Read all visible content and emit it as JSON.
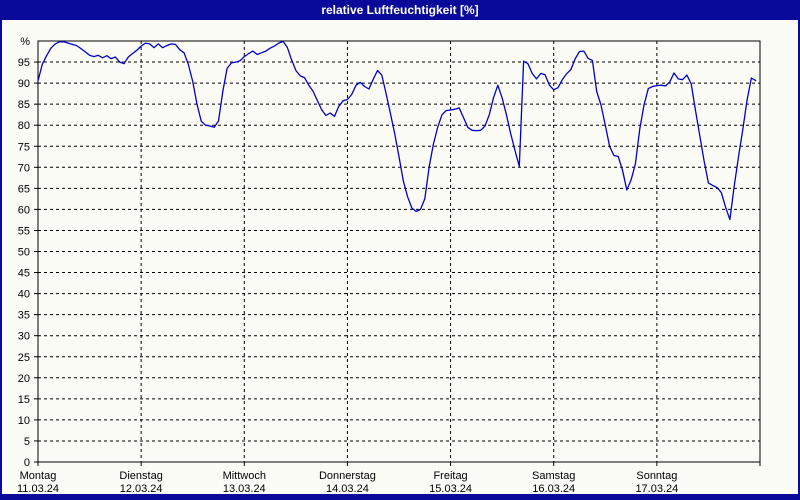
{
  "window": {
    "title": "relative Luftfeuchtigkeit [%]"
  },
  "colors": {
    "titlebar_and_border": "#0a0a9a",
    "plot_background": "#fcfcf6",
    "line": "#0000cd",
    "grid": "#000000",
    "text": "#000000"
  },
  "chart_data": {
    "type": "line",
    "title": "relative Luftfeuchtigkeit [%]",
    "ylabel": "%",
    "ylim": [
      0,
      100
    ],
    "ytick_step": 5,
    "yticks": [
      0,
      5,
      10,
      15,
      20,
      25,
      30,
      35,
      40,
      45,
      50,
      55,
      60,
      65,
      70,
      75,
      80,
      85,
      90,
      95
    ],
    "grid": {
      "horizontal": "dashed every 5",
      "vertical": "dashed at day boundaries"
    },
    "legend_position": "none",
    "x_axis": {
      "unit": "hourly samples, 7 days",
      "hours_per_day": 24,
      "days": [
        {
          "weekday": "Montag",
          "date": "11.03.24"
        },
        {
          "weekday": "Dienstag",
          "date": "12.03.24"
        },
        {
          "weekday": "Mittwoch",
          "date": "13.03.24"
        },
        {
          "weekday": "Donnerstag",
          "date": "14.03.24"
        },
        {
          "weekday": "Freitag",
          "date": "15.03.24"
        },
        {
          "weekday": "Samstag",
          "date": "16.03.24"
        },
        {
          "weekday": "Sonntag",
          "date": "17.03.24"
        }
      ]
    },
    "series": [
      {
        "name": "relative Luftfeuchtigkeit",
        "color": "#0000cd",
        "sampling": "hourly from Montag 00:00",
        "values": [
          90.5,
          94.5,
          96.5,
          98.3,
          99.3,
          99.8,
          99.8,
          99.5,
          99.2,
          98.9,
          98.2,
          97.4,
          96.6,
          96.3,
          96.6,
          96.0,
          96.5,
          95.8,
          96.2,
          95.0,
          94.6,
          96.2,
          97.0,
          97.8,
          98.8,
          99.5,
          99.3,
          98.4,
          99.3,
          98.4,
          98.9,
          99.3,
          99.2,
          97.9,
          97.2,
          94.4,
          90.4,
          85.0,
          80.9,
          80.0,
          79.8,
          79.5,
          81.0,
          88.0,
          93.5,
          94.8,
          95.0,
          95.3,
          96.3,
          97.0,
          97.6,
          96.8,
          97.2,
          97.6,
          98.3,
          98.8,
          99.5,
          99.9,
          98.5,
          95.5,
          93.0,
          91.7,
          91.3,
          89.5,
          88.1,
          85.9,
          83.7,
          82.3,
          82.9,
          82.1,
          84.5,
          85.8,
          86.1,
          87.3,
          89.5,
          90.2,
          89.2,
          88.6,
          90.9,
          93.0,
          91.9,
          87.5,
          82.8,
          78.0,
          72.5,
          66.8,
          63.0,
          60.3,
          59.5,
          60.0,
          62.5,
          70.0,
          75.5,
          79.5,
          82.5,
          83.5,
          83.6,
          83.8,
          84.1,
          81.8,
          79.5,
          78.8,
          78.7,
          78.8,
          79.8,
          82.5,
          86.5,
          89.5,
          86.5,
          82.5,
          78.0,
          74.0,
          70.2,
          95.2,
          94.6,
          92.3,
          91.0,
          92.3,
          92.0,
          89.5,
          88.4,
          88.9,
          90.8,
          92.2,
          93.2,
          95.8,
          97.5,
          97.6,
          95.9,
          95.4,
          88.0,
          84.8,
          80.0,
          75.0,
          72.8,
          72.6,
          69.3,
          64.6,
          67.0,
          70.8,
          79.0,
          84.8,
          88.7,
          89.2,
          89.4,
          89.5,
          89.3,
          90.3,
          92.4,
          91.0,
          90.8,
          91.9,
          89.8,
          83.5,
          77.5,
          71.5,
          66.3,
          65.7,
          65.2,
          64.0,
          60.5,
          57.6,
          65.5,
          72.5,
          79.0,
          86.0,
          91.2,
          90.6
        ]
      }
    ]
  }
}
